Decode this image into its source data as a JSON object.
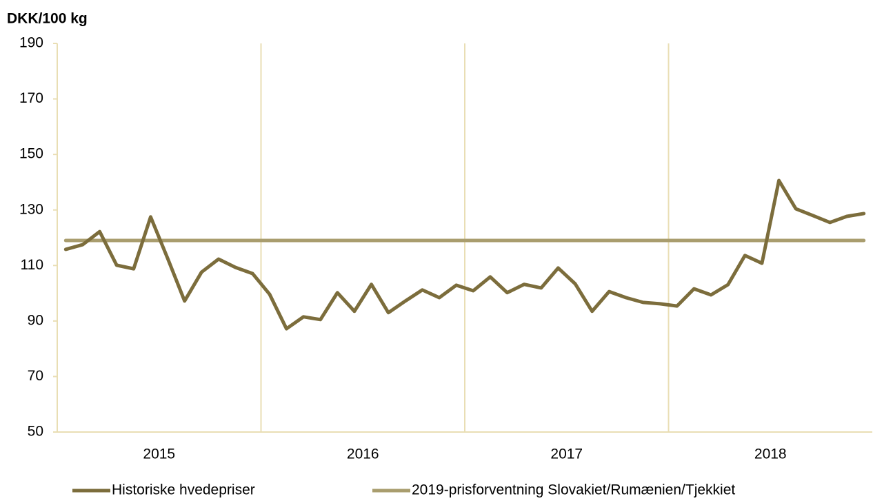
{
  "chart_data": {
    "type": "line",
    "y_axis_label": "DKK/100 kg",
    "categories": [
      null,
      null,
      null,
      null,
      null,
      null,
      null,
      null,
      null,
      null,
      null,
      null,
      null,
      null,
      null,
      null,
      null,
      null,
      null,
      null,
      null,
      null,
      null,
      null,
      null,
      null,
      null,
      null,
      null,
      null,
      null,
      null,
      null,
      null,
      null,
      null,
      null,
      null,
      null,
      null,
      null,
      null,
      null,
      null,
      null,
      null,
      null,
      null
    ],
    "category_groups": [
      "2015",
      "2016",
      "2017",
      "2018"
    ],
    "ylim": [
      50,
      190
    ],
    "yticks": [
      50,
      70,
      90,
      110,
      130,
      150,
      170,
      190
    ],
    "grid_color": "#e9deb4",
    "legend": "bottom",
    "series": [
      {
        "name": "Historiske hvedepriser",
        "color": "#7c6d3c",
        "values": [
          115.8,
          117.5,
          122.2,
          110.1,
          108.8,
          127.5,
          112.6,
          97.2,
          107.6,
          112.3,
          109.3,
          107.1,
          99.7,
          87.2,
          91.5,
          90.5,
          100.2,
          93.5,
          103.2,
          93.0,
          97.2,
          101.2,
          98.4,
          102.9,
          100.9,
          105.9,
          100.2,
          103.2,
          101.9,
          109.1,
          103.4,
          93.5,
          100.6,
          98.4,
          96.7,
          96.2,
          95.4,
          101.6,
          99.4,
          103.1,
          113.6,
          110.8,
          140.6,
          130.4,
          128.0,
          125.5,
          127.7,
          128.7
        ]
      },
      {
        "name": "2019-prisforventning Slovakiet/Rumænien/Tjekkiet",
        "color": "#a99d6e",
        "values": [
          119,
          119,
          119,
          119,
          119,
          119,
          119,
          119,
          119,
          119,
          119,
          119,
          119,
          119,
          119,
          119,
          119,
          119,
          119,
          119,
          119,
          119,
          119,
          119,
          119,
          119,
          119,
          119,
          119,
          119,
          119,
          119,
          119,
          119,
          119,
          119,
          119,
          119,
          119,
          119,
          119,
          119,
          119,
          119,
          119,
          119,
          119,
          119
        ]
      }
    ]
  }
}
